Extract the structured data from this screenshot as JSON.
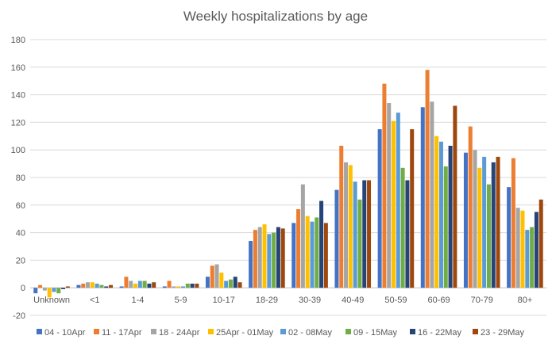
{
  "chart_data": {
    "type": "bar",
    "title": "Weekly hospitalizations by age",
    "xlabel": "",
    "ylabel": "",
    "ylim": [
      -20,
      180
    ],
    "yticks": [
      -20,
      0,
      20,
      40,
      60,
      80,
      100,
      120,
      140,
      160,
      180
    ],
    "grid": true,
    "legend": "bottom",
    "categories": [
      "Unknown",
      "<1",
      "1-4",
      "5-9",
      "10-17",
      "18-29",
      "30-39",
      "40-49",
      "50-59",
      "60-69",
      "70-79",
      "80+"
    ],
    "series": [
      {
        "name": "04 - 10Apr",
        "color": "#4472C4",
        "values": [
          -4,
          2,
          1,
          1,
          8,
          34,
          47,
          71,
          115,
          131,
          98,
          73
        ]
      },
      {
        "name": "11 - 17Apr",
        "color": "#ED7D31",
        "values": [
          2,
          3,
          8,
          5,
          16,
          42,
          57,
          103,
          148,
          158,
          117,
          94
        ]
      },
      {
        "name": "18 - 24Apr",
        "color": "#A5A5A5",
        "values": [
          -2,
          4,
          5,
          1,
          17,
          44,
          75,
          91,
          134,
          135,
          100,
          58
        ]
      },
      {
        "name": "25Apr - 01May",
        "color": "#FFC000",
        "values": [
          -7,
          4,
          3,
          1,
          11,
          46,
          52,
          89,
          121,
          110,
          87,
          56
        ]
      },
      {
        "name": "02 - 08May",
        "color": "#5B9BD5",
        "values": [
          -3,
          3,
          5,
          1,
          5,
          39,
          48,
          77,
          127,
          106,
          95,
          42
        ]
      },
      {
        "name": "09 - 15May",
        "color": "#70AD47",
        "values": [
          -4,
          2,
          5,
          3,
          6,
          40,
          51,
          64,
          87,
          88,
          75,
          44
        ]
      },
      {
        "name": "16 - 22May",
        "color": "#264478",
        "values": [
          -1,
          1,
          3,
          3,
          8,
          44,
          63,
          78,
          78,
          103,
          91,
          55
        ]
      },
      {
        "name": "23 - 29May",
        "color": "#9E480E",
        "values": [
          1,
          2,
          4,
          3,
          4,
          43,
          47,
          78,
          115,
          132,
          95,
          64
        ]
      }
    ]
  }
}
